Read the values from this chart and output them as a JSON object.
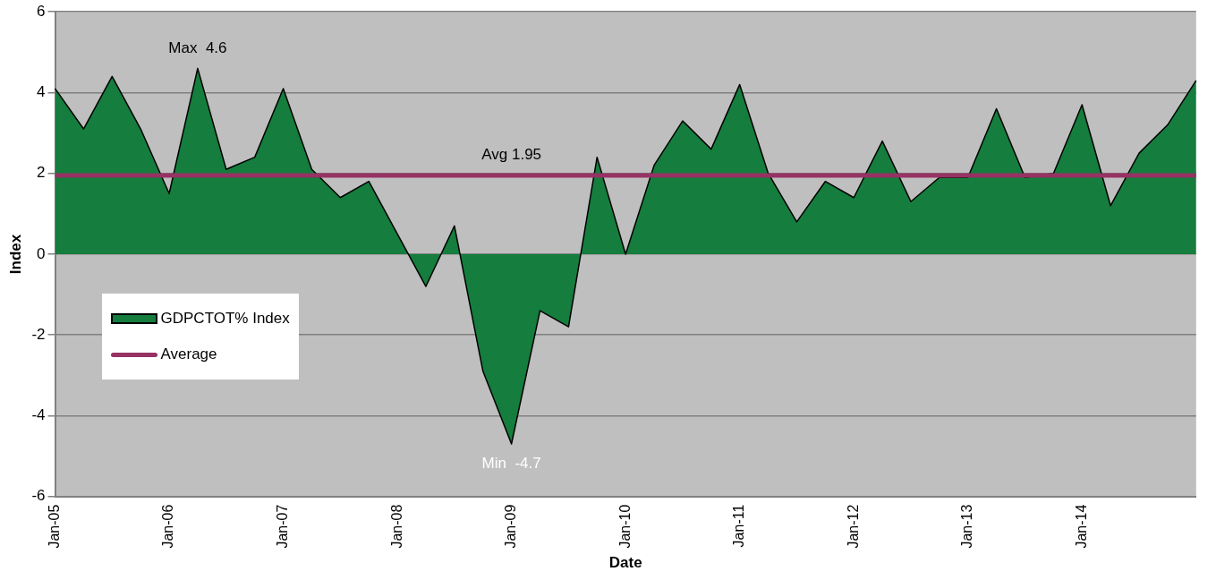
{
  "chart_data": {
    "type": "area",
    "xlabel": "Date",
    "ylabel": "Index",
    "categories": [
      "Jan-05",
      null,
      null,
      null,
      "Jan-06",
      null,
      null,
      null,
      "Jan-07",
      null,
      null,
      null,
      "Jan-08",
      null,
      null,
      null,
      "Jan-09",
      null,
      null,
      null,
      "Jan-10",
      null,
      null,
      null,
      "Jan-11",
      null,
      null,
      null,
      "Jan-12",
      null,
      null,
      null,
      "Jan-13",
      null,
      null,
      null,
      "Jan-14",
      null,
      null,
      null,
      null
    ],
    "series": [
      {
        "name": "GDPCTOT% Index",
        "type": "area",
        "color": "#157d3d",
        "values": [
          4.1,
          3.1,
          4.4,
          3.1,
          1.5,
          4.6,
          2.1,
          2.4,
          4.1,
          2.1,
          1.4,
          1.8,
          0.5,
          -0.8,
          0.7,
          -2.9,
          -4.7,
          -1.4,
          -1.8,
          2.4,
          0.0,
          2.2,
          3.3,
          2.6,
          4.2,
          2.0,
          0.8,
          1.8,
          1.4,
          2.8,
          1.3,
          1.9,
          1.9,
          3.6,
          1.9,
          2.0,
          3.7,
          1.2,
          2.5,
          3.2,
          4.3
        ]
      },
      {
        "name": "Average",
        "type": "line",
        "color": "#963264",
        "values": [
          1.95,
          1.95,
          1.95,
          1.95,
          1.95,
          1.95,
          1.95,
          1.95,
          1.95,
          1.95,
          1.95,
          1.95,
          1.95,
          1.95,
          1.95,
          1.95,
          1.95,
          1.95,
          1.95,
          1.95,
          1.95,
          1.95,
          1.95,
          1.95,
          1.95,
          1.95,
          1.95,
          1.95,
          1.95,
          1.95,
          1.95,
          1.95,
          1.95,
          1.95,
          1.95,
          1.95,
          1.95,
          1.95,
          1.95,
          1.95,
          1.95
        ]
      }
    ],
    "ylim": [
      -6,
      6
    ],
    "yticks": [
      -6,
      -4,
      -2,
      0,
      2,
      4,
      6
    ],
    "grid": "y",
    "legend": "bottom left",
    "marker": "none",
    "annotations": [
      {
        "text": "Max  4.6",
        "y": 4.6
      },
      {
        "text": "Avg 1.95",
        "x": "Jan-09",
        "y": 1.95
      },
      {
        "text": "Min  -4.7",
        "x": "Jan-09",
        "y": -4.7
      }
    ]
  }
}
